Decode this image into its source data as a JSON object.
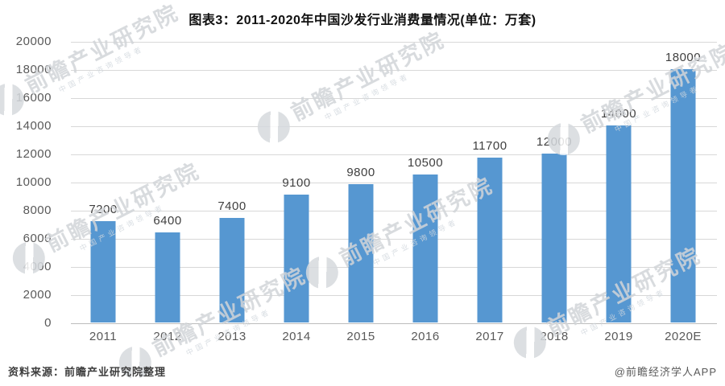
{
  "title": "图表3：2011-2020年中国沙发行业消费量情况(单位：万套)",
  "chart_data": {
    "type": "bar",
    "title": "图表3：2011-2020年中国沙发行业消费量情况(单位：万套)",
    "categories": [
      "2011",
      "2012",
      "2013",
      "2014",
      "2015",
      "2016",
      "2017",
      "2018",
      "2019",
      "2020E"
    ],
    "values": [
      7200,
      6400,
      7400,
      9100,
      9800,
      10500,
      11700,
      12000,
      14000,
      18000
    ],
    "unit": "万套",
    "xlabel": "",
    "ylabel": "",
    "ylim": [
      0,
      20000
    ],
    "ytick_interval": 2000,
    "yticks": [
      0,
      2000,
      4000,
      6000,
      8000,
      10000,
      12000,
      14000,
      16000,
      18000,
      20000
    ],
    "grid": true,
    "legend_position": "none",
    "data_labels": true,
    "bar_color": "#5697d1",
    "data_label_color": "#3f3f3f",
    "axis_label_color": "#595959",
    "gridline_color": "#d8d8d8"
  },
  "watermark": {
    "icon": "qianzhan-globe-logo",
    "text": "前瞻产业研究院",
    "subtext": "中国产业咨询领导者"
  },
  "footer": {
    "source": "资料来源：前瞻产业研究院整理",
    "credit": "@前瞻经济学人APP"
  }
}
